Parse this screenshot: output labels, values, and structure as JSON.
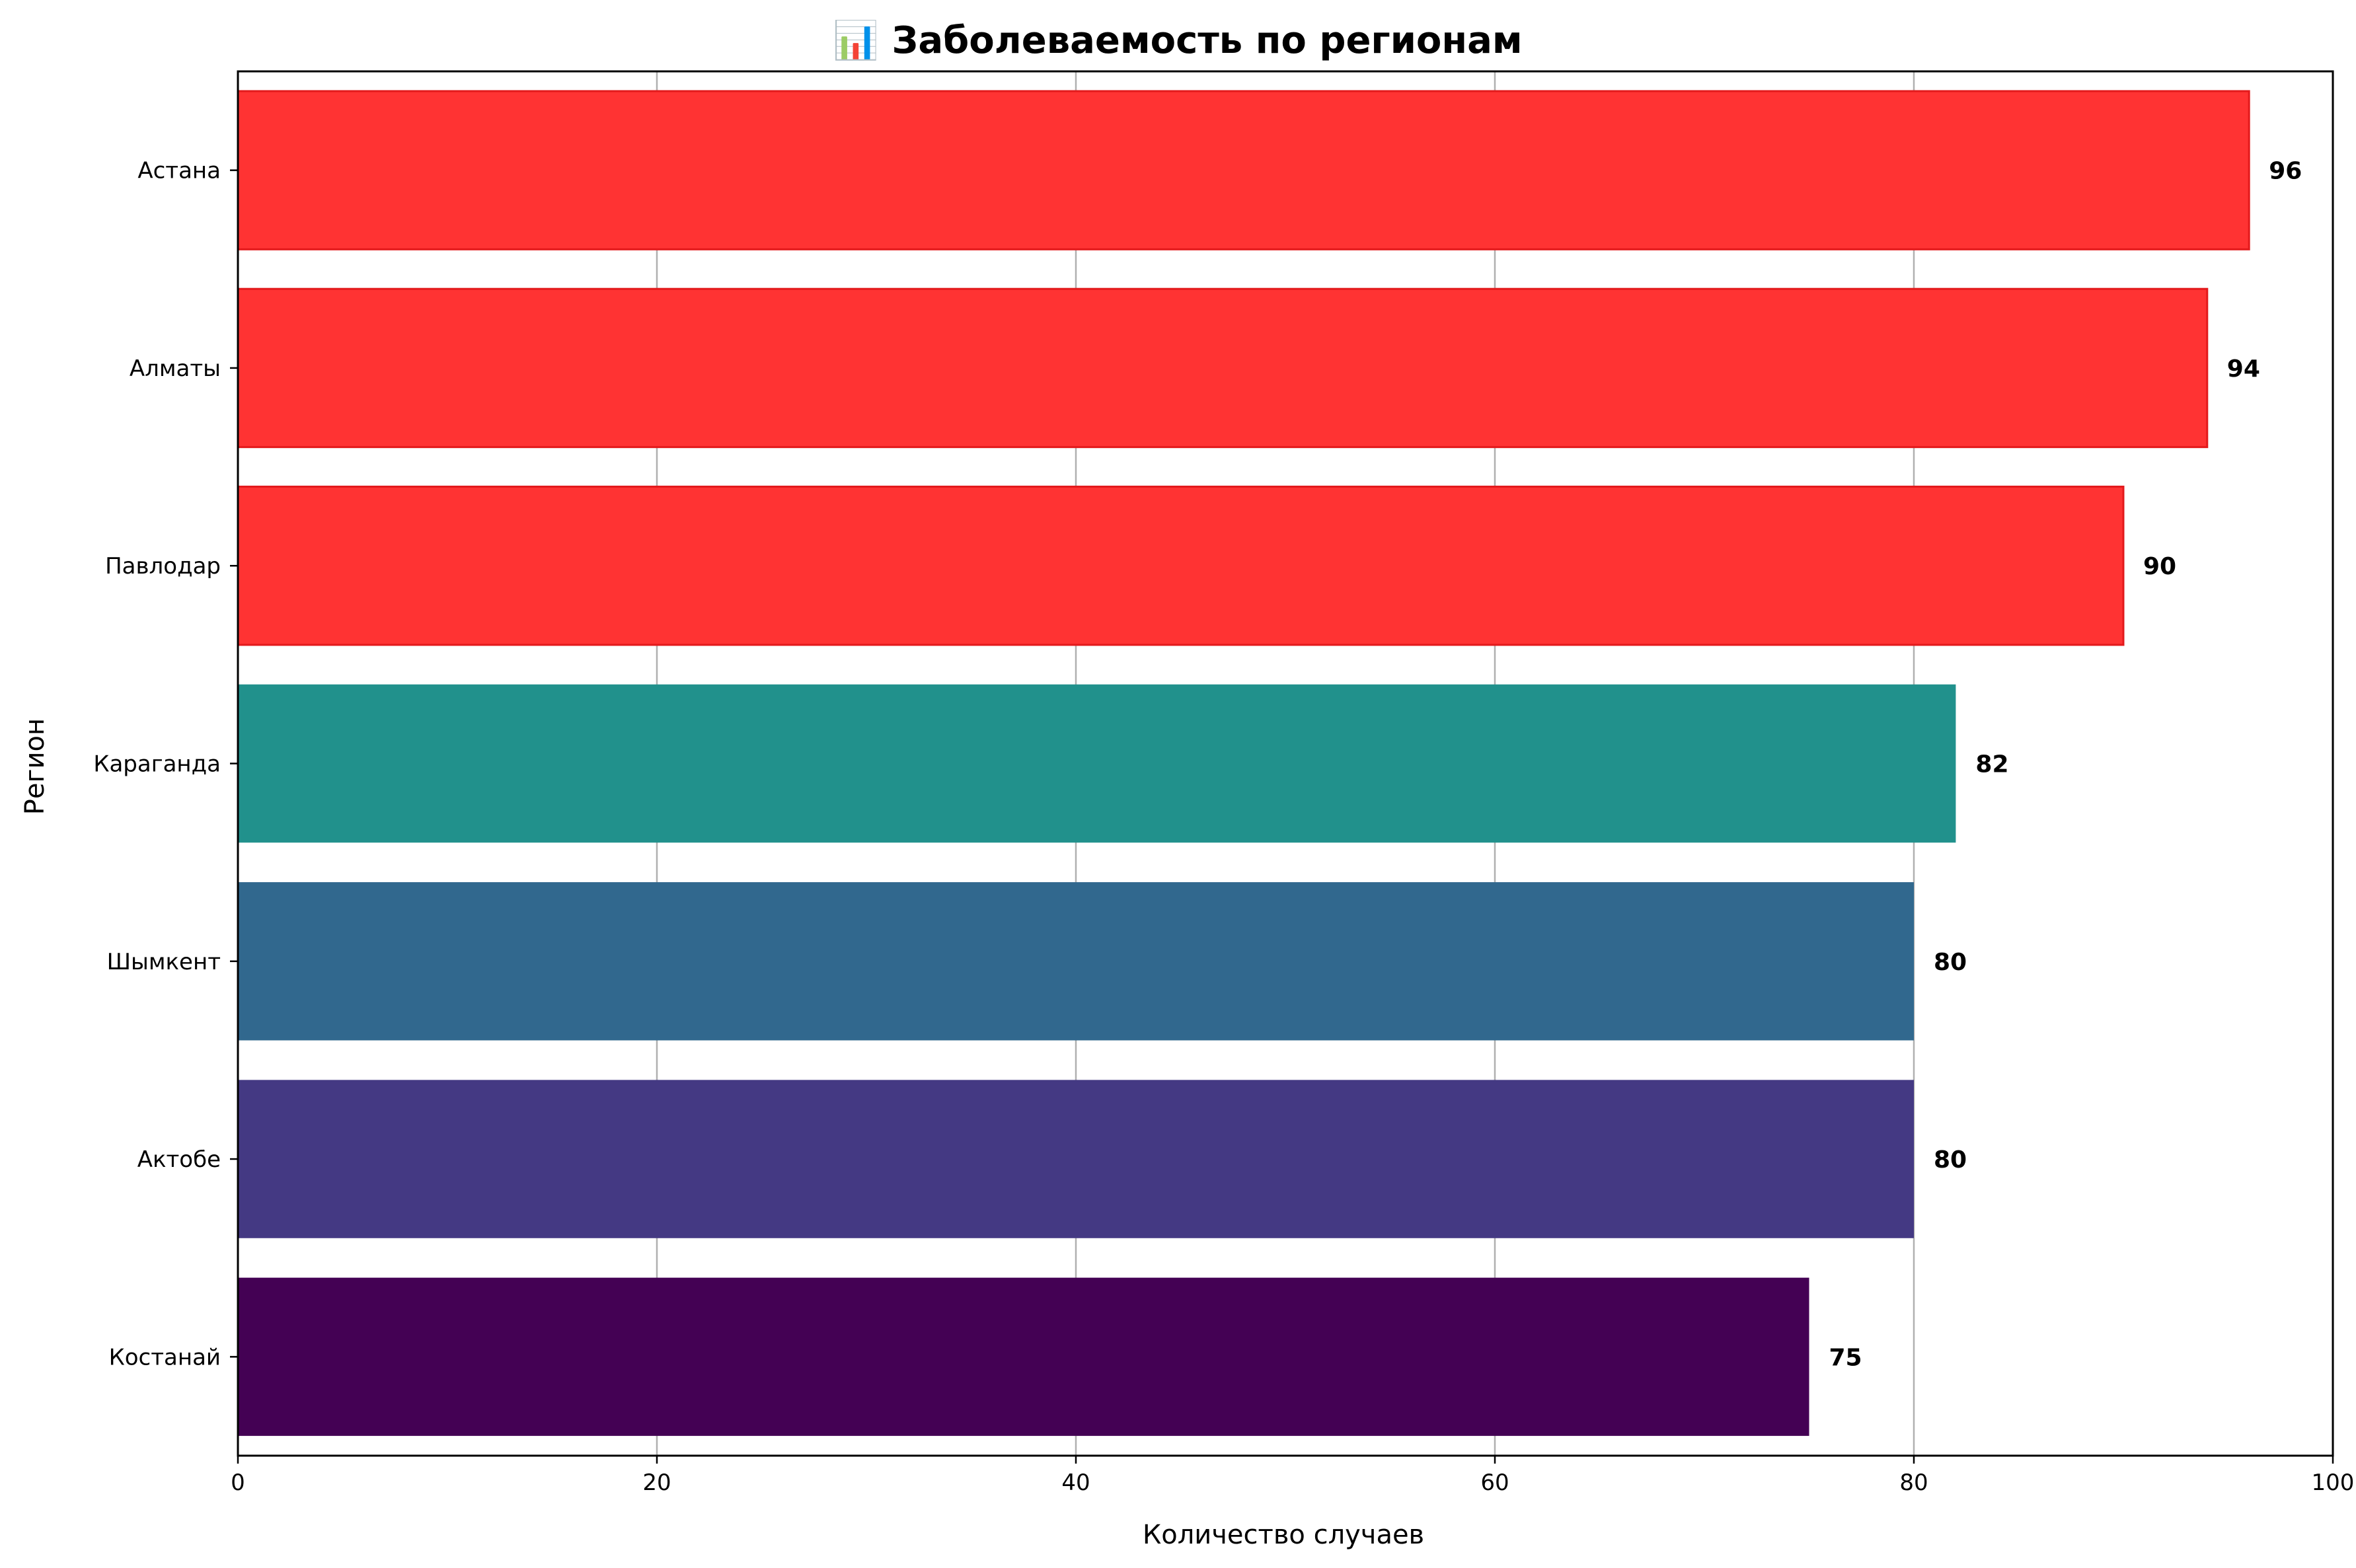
{
  "chart_data": {
    "type": "bar",
    "orientation": "horizontal",
    "title": "📊 Заболеваемость по регионам",
    "title_icon": "bar-chart-icon",
    "xlabel": "Количество случаев",
    "ylabel": "Регион",
    "categories": [
      "Астана",
      "Алматы",
      "Павлодар",
      "Караганда",
      "Шымкент",
      "Актобе",
      "Костанай"
    ],
    "values": [
      96,
      94,
      90,
      82,
      80,
      80,
      75
    ],
    "bar_colors": [
      "#ff3333",
      "#ff3333",
      "#ff3333",
      "#21918c",
      "#31688e",
      "#443983",
      "#440154"
    ],
    "highlight_edge_color": "#e31a1c",
    "xlim": [
      0,
      100
    ],
    "xticks": [
      0,
      20,
      40,
      60,
      80,
      100
    ],
    "grid": "x-axis vertical lines",
    "legend": "none"
  }
}
